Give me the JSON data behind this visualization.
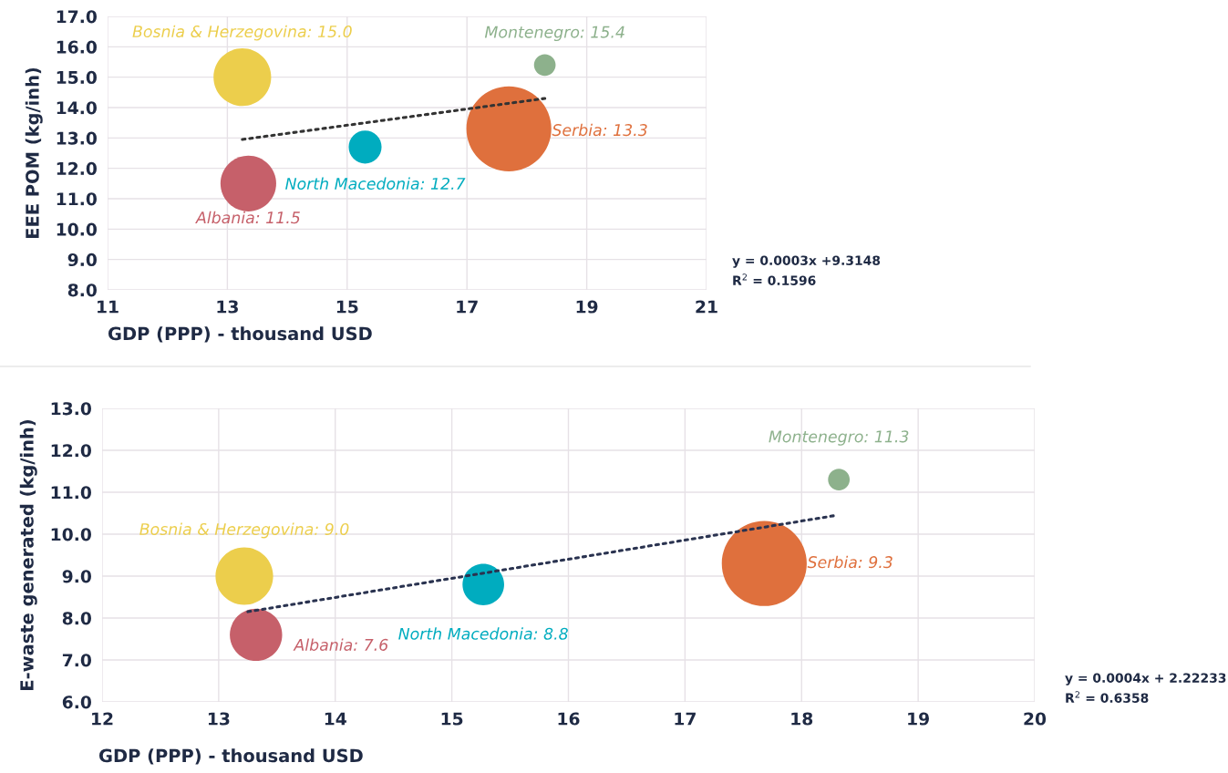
{
  "chart_data": [
    {
      "type": "bubble",
      "xlabel": "GDP (PPP) - thousand USD",
      "ylabel": "EEE POM (kg/inh)",
      "xlim": [
        11,
        21
      ],
      "xticks": [
        11,
        13,
        15,
        17,
        19,
        21
      ],
      "ylim": [
        8.0,
        17.0
      ],
      "yticks": [
        {
          "value": 8,
          "label": "8.0"
        },
        {
          "value": 9,
          "label": "9.0"
        },
        {
          "value": 10,
          "label": "10.0"
        },
        {
          "value": 11,
          "label": "11.0"
        },
        {
          "value": 12,
          "label": "12.0"
        },
        {
          "value": 13,
          "label": "13.0"
        },
        {
          "value": 14,
          "label": "14.0"
        },
        {
          "value": 15,
          "label": "15.0"
        },
        {
          "value": 16,
          "label": "16.0"
        },
        {
          "value": 17,
          "label": "17.0"
        }
      ],
      "grid": true,
      "legend": false,
      "series": [
        {
          "x": [
            13.25,
            13.35,
            15.3,
            17.7,
            18.3
          ],
          "values": [
            15.0,
            11.5,
            12.7,
            13.3,
            15.4
          ],
          "sizes": [
            0.46,
            0.43,
            0.15,
            1,
            0.065
          ],
          "colors": [
            "#ecce4c",
            "#c6606a",
            "#00acbf",
            "#df703d",
            "#8db18c"
          ]
        },
        {
          "type": "line",
          "x": [
            13.25,
            18.3
          ],
          "values": [
            12.95,
            14.3
          ],
          "color": "#333333",
          "line_style": "dotted"
        }
      ],
      "annotations": [
        {
          "text": "Bosnia & Herzegovina: 15.0",
          "x": 13.25,
          "y": 15.0
        },
        {
          "text": "Albania: 11.5",
          "x": 13.35,
          "y": 11.5
        },
        {
          "text": "North Macedonia: 12.7",
          "x": 15.3,
          "y": 12.7
        },
        {
          "text": "Serbia: 13.3",
          "x": 17.7,
          "y": 13.3
        },
        {
          "text": "Montenegro: 15.4",
          "x": 18.3,
          "y": 15.4
        },
        "y = 0.0003x +9.3148",
        "R$^{2}$ = 0.1596"
      ]
    },
    {
      "type": "bubble",
      "xlabel": "GDP (PPP) - thousand USD",
      "ylabel": "E-waste generated (kg/inh)",
      "xlim": [
        12,
        20
      ],
      "xticks": [
        12,
        13,
        14,
        15,
        16,
        17,
        18,
        19,
        20
      ],
      "ylim": [
        6.0,
        13.0
      ],
      "yticks": [
        {
          "value": 6,
          "label": "6.0"
        },
        {
          "value": 7,
          "label": "7.0"
        },
        {
          "value": 8,
          "label": "8.0"
        },
        {
          "value": 9,
          "label": "9.0"
        },
        {
          "value": 10,
          "label": "10.0"
        },
        {
          "value": 11,
          "label": "11.0"
        },
        {
          "value": 12,
          "label": "12.0"
        },
        {
          "value": 13,
          "label": "13.0"
        }
      ],
      "grid": true,
      "legend": false,
      "series": [
        {
          "x": [
            13.22,
            13.32,
            15.27,
            17.68,
            18.32
          ],
          "values": [
            9.0,
            7.6,
            8.8,
            9.3,
            11.3
          ],
          "sizes": [
            0.46,
            0.38,
            0.24,
            1,
            0.065
          ],
          "colors": [
            "#ecce4c",
            "#c6606a",
            "#00acbf",
            "#df703d",
            "#8db18c"
          ]
        },
        {
          "type": "line",
          "x": [
            13.25,
            18.3
          ],
          "values": [
            8.15,
            10.45
          ],
          "color": "#2a3350",
          "line_style": "dotted"
        }
      ],
      "annotations": [
        {
          "text": "Bosnia & Herzegovina: 9.0",
          "x": 13.22,
          "y": 9.0
        },
        {
          "text": "Albania: 7.6",
          "x": 13.32,
          "y": 7.6
        },
        {
          "text": "North Macedonia: 8.8",
          "x": 15.27,
          "y": 8.8
        },
        {
          "text": "Serbia: 9.3",
          "x": 17.68,
          "y": 9.3
        },
        {
          "text": "Montenegro: 11.3",
          "x": 18.32,
          "y": 11.3
        },
        "y = 0.0004x + 2.22233",
        "R$^{2}$ = 0.6358"
      ]
    }
  ]
}
